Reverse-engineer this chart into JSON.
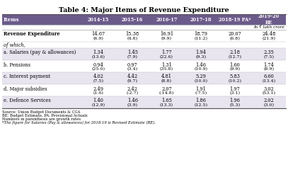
{
  "title": "Table 4: Major Items of Revenue Expenditure",
  "header_bg": "#6B5B8B",
  "alt_row_bg": "#E8E4F0",
  "white_bg": "#FFFFFF",
  "columns": [
    "Items",
    "2014-15",
    "2015-16",
    "2016-17",
    "2017-18",
    "2018-19 PA*",
    "2019-20\nBE"
  ],
  "unit_text": "In ₹ lakh crore",
  "rows": [
    {
      "label": "Revenue Expenditure",
      "bold": true,
      "italic": false,
      "values": [
        "14.67",
        "15.38",
        "16.91",
        "18.79",
        "20.07",
        "24.48"
      ],
      "growth": [
        "(6.9)",
        "(4.8)",
        "(9.9)",
        "(11.2)",
        "(6.8)",
        "(21.9)"
      ],
      "bg": "#FFFFFF"
    },
    {
      "label": "of which,",
      "bold": false,
      "italic": true,
      "values": null,
      "growth": null,
      "bg": "#FFFFFF"
    },
    {
      "label": "a. Salaries (pay & allowances)",
      "bold": false,
      "italic": false,
      "values": [
        "1.34",
        "1.45",
        "1.77",
        "1.94",
        "2.18",
        "2.35"
      ],
      "growth": [
        "(13.6)",
        "(7.9)",
        "(22.6)",
        "(9.3)",
        "(12.7)",
        "(7.5)"
      ],
      "bg": "#E8E4F0"
    },
    {
      "label": "b. Pensions",
      "bold": false,
      "italic": false,
      "values": [
        "0.94",
        "0.97",
        "1.31",
        "1.46",
        "1.60",
        "1.74"
      ],
      "growth": [
        "(25.0)",
        "(3.4)",
        "(35.8)",
        "(10.9)",
        "(9.9)",
        "(8.9)"
      ],
      "bg": "#FFFFFF"
    },
    {
      "label": "c. Interest payment",
      "bold": false,
      "italic": false,
      "values": [
        "4.02",
        "4.42",
        "4.81",
        "5.29",
        "5.83",
        "6.60"
      ],
      "growth": [
        "(7.5)",
        "(9.7)",
        "(8.8)",
        "(10.0)",
        "(10.2)",
        "(13.4)"
      ],
      "bg": "#E8E4F0"
    },
    {
      "label": "d. Major subsidies",
      "bold": false,
      "italic": false,
      "values": [
        "2.49",
        "2.42",
        "2.07",
        "1.91",
        "1.97",
        "3.02"
      ],
      "growth": [
        "(1.6)",
        "(-2.7)",
        "(-14.8)",
        "(-7.5)",
        "(3.1)",
        "(53.1)"
      ],
      "bg": "#FFFFFF"
    },
    {
      "label": "e. Defence Services",
      "bold": false,
      "italic": false,
      "values": [
        "1.40",
        "1.46",
        "1.65",
        "1.86",
        "1.96",
        "2.02"
      ],
      "growth": [
        "(12.9)",
        "(3.9)",
        "(13.3)",
        "(12.5)",
        "(5.3)",
        "(3.0)"
      ],
      "bg": "#E8E4F0"
    }
  ],
  "footnotes": [
    "Source: Union Budget Documents & CGA",
    "BE: Budget Estimate, PA: Provisional Actuals",
    "Numbers in parenthesis are growth rates",
    "*The figure for Salaries (Pay & allowances) for 2018-19 is Revised Estimate (RE)."
  ]
}
